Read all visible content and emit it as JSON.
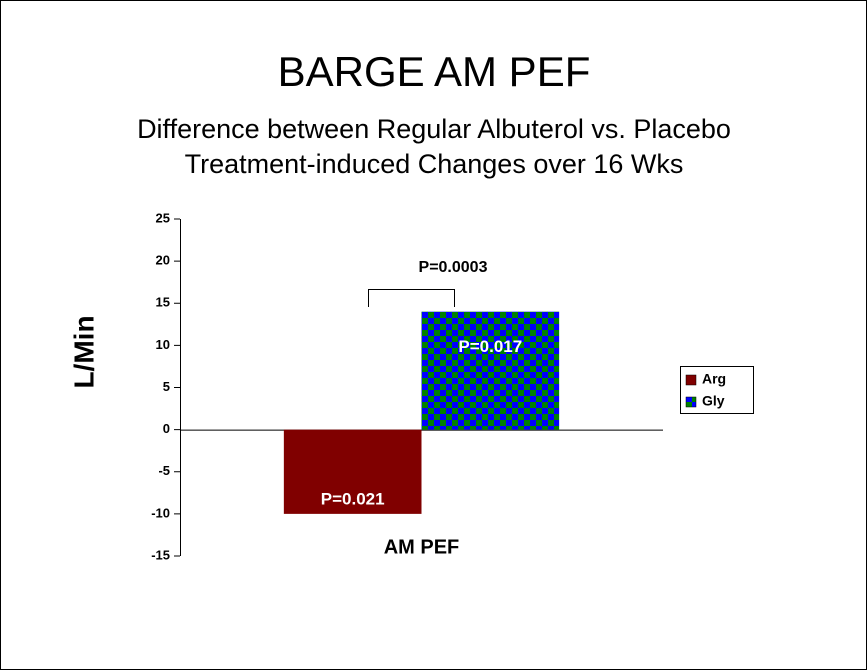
{
  "chart_data": {
    "type": "bar",
    "title": "BARGE AM PEF",
    "subtitle": [
      "Difference between Regular Albuterol vs. Placebo",
      "Treatment-induced Changes over 16 Wks"
    ],
    "y_label": "L/Min",
    "categories": [
      "AM PEF"
    ],
    "series": [
      {
        "name": "Arg",
        "color": "#800000",
        "values": [
          -10
        ],
        "p_label": "P=0.021"
      },
      {
        "name": "Gly",
        "color": "#008000",
        "pattern_color": "#0000ff",
        "values": [
          14
        ],
        "p_label": "P=0.017"
      }
    ],
    "comparison_label": "P=0.0003",
    "ylim": [
      -15,
      25
    ],
    "yticks": [
      -15,
      -10,
      -5,
      0,
      5,
      10,
      15,
      20,
      25
    ],
    "grid": false,
    "legend": "right"
  }
}
